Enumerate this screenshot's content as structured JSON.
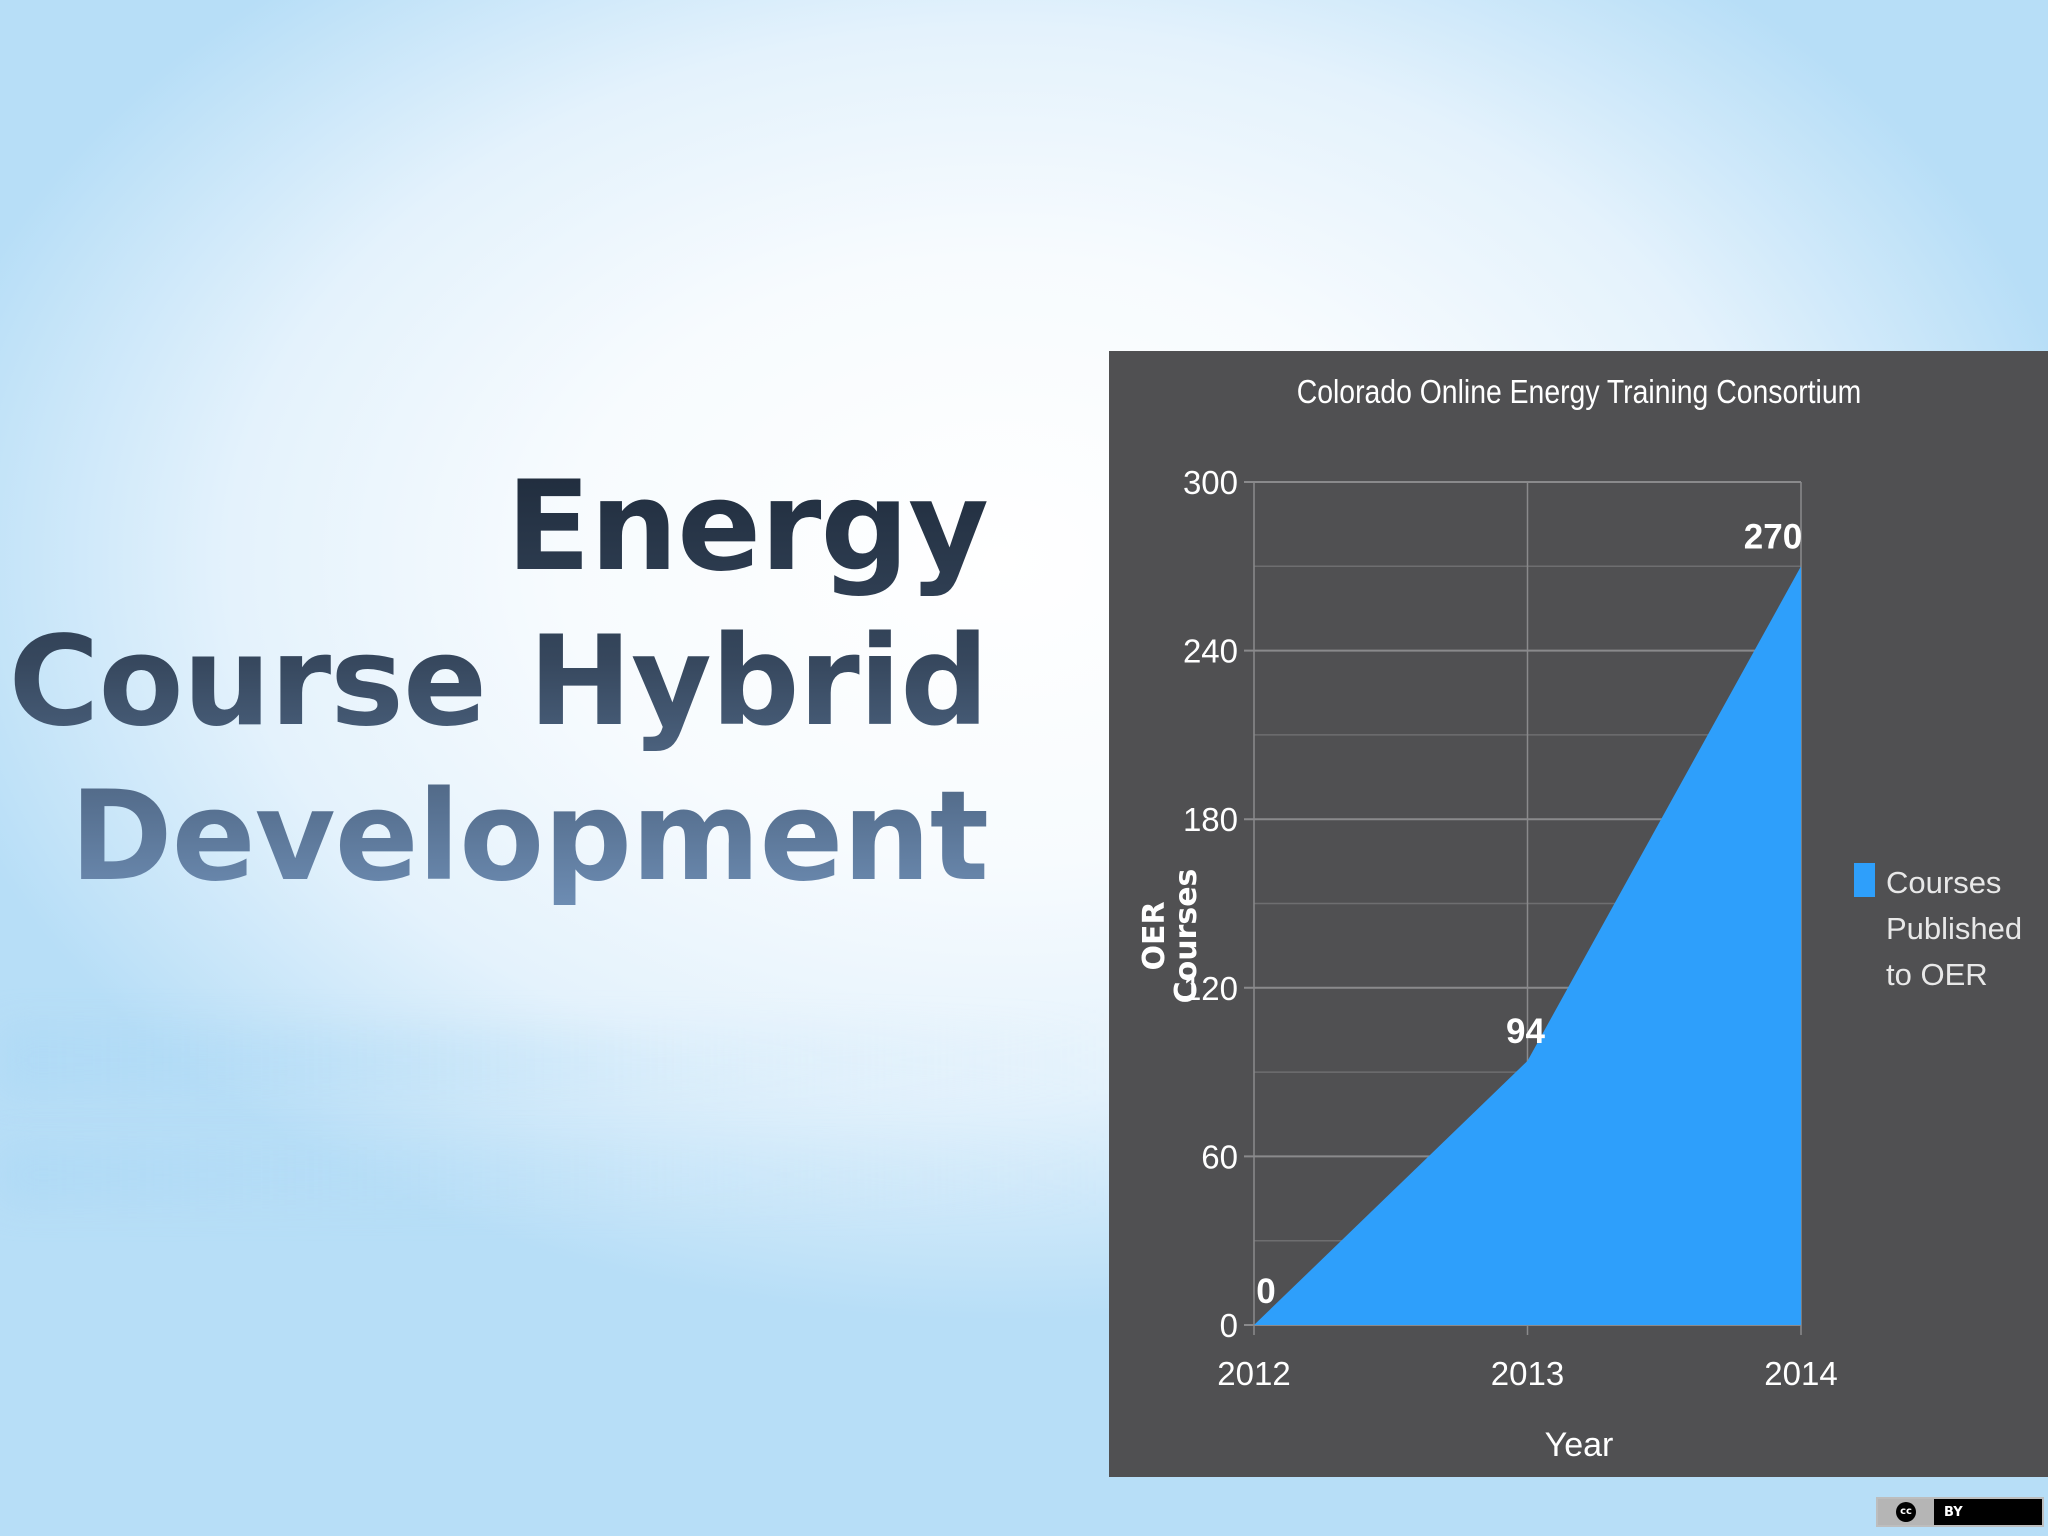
{
  "slide": {
    "title_lines": [
      "Energy",
      "Course Hybrid",
      "Development"
    ]
  },
  "chart_data": {
    "type": "area",
    "title": "Colorado Online Energy Training Consortium",
    "xlabel": "Year",
    "ylabel": "OER Courses",
    "x": [
      "2012",
      "2013",
      "2014"
    ],
    "series": [
      {
        "name": "Courses Published to OER",
        "values": [
          0,
          94,
          270
        ],
        "color": "#2e9ffb"
      }
    ],
    "data_labels": [
      "0",
      "94",
      "270"
    ],
    "ylim": [
      0,
      300
    ],
    "yticks": [
      0,
      60,
      120,
      180,
      240,
      300
    ],
    "ytick_labels": [
      "0",
      "60",
      "120",
      "180",
      "240",
      "300"
    ],
    "grid": true,
    "legend_position": "right",
    "background_color": "#505052"
  },
  "license_badge": {
    "cc_text": "cc",
    "by_text": "BY"
  }
}
